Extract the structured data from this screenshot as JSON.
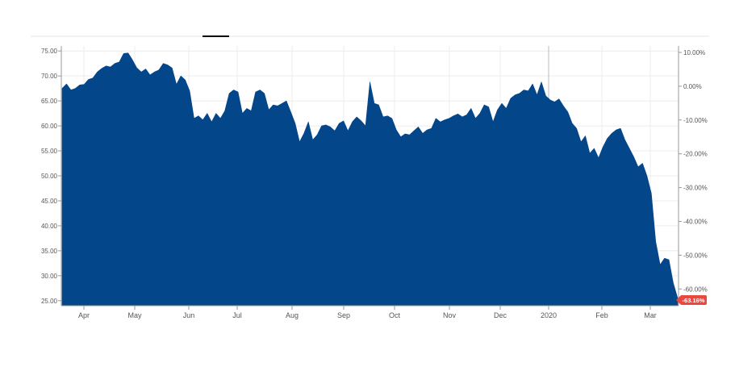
{
  "chart_data": {
    "type": "area",
    "title": "",
    "xlabel": "",
    "ylabel": "",
    "x_labels": [
      "Apr",
      "May",
      "Jun",
      "Jul",
      "Aug",
      "Sep",
      "Oct",
      "Nov",
      "Dec",
      "2020",
      "Feb",
      "Mar"
    ],
    "ylim": [
      24,
      76
    ],
    "left_ticks": [
      "75.00",
      "70.00",
      "65.00",
      "60.00",
      "55.00",
      "50.00",
      "45.00",
      "40.00",
      "35.00",
      "30.00",
      "25.00"
    ],
    "right_ticks": [
      "10.00%",
      "0.00%",
      "-10.00%",
      "-20.00%",
      "-30.00%",
      "-40.00%",
      "-50.00%",
      "-60.00%"
    ],
    "last_change_label": "-63.16%",
    "grid": true,
    "colors": {
      "fill": "#04468a",
      "badge": "#e8483f",
      "grid": "#ececec",
      "axis": "#999999",
      "text": "#555555"
    },
    "series": [
      {
        "values": [
          67.5,
          68.4,
          67.2,
          67.5,
          68.2,
          68.3,
          69.3,
          69.6,
          70.8,
          71.5,
          72.0,
          71.8,
          72.5,
          72.8,
          74.5,
          74.6,
          73.2,
          71.6,
          70.8,
          71.4,
          70.2,
          70.8,
          71.2,
          72.5,
          72.2,
          71.6,
          68.3,
          70.0,
          69.2,
          67.0,
          61.5,
          62.0,
          61.2,
          62.5,
          60.8,
          62.5,
          61.5,
          63.0,
          66.5,
          67.2,
          66.8,
          62.5,
          63.5,
          63.0,
          66.8,
          67.2,
          66.5,
          63.2,
          64.2,
          64.0,
          64.5,
          65.0,
          62.8,
          60.5,
          56.8,
          58.5,
          60.8,
          57.2,
          58.2,
          60.0,
          60.2,
          59.8,
          59.0,
          60.5,
          61.0,
          59.0,
          60.8,
          61.8,
          61.0,
          60.0,
          68.8,
          64.5,
          64.2,
          61.8,
          62.0,
          61.5,
          59.2,
          57.8,
          58.4,
          58.2,
          59.0,
          59.8,
          58.5,
          59.2,
          59.5,
          61.5,
          60.8,
          61.2,
          61.5,
          62.0,
          62.4,
          61.8,
          62.2,
          63.5,
          61.5,
          62.5,
          64.2,
          63.8,
          60.8,
          63.2,
          64.5,
          63.5,
          65.5,
          66.2,
          66.5,
          67.2,
          67.0,
          68.4,
          66.2,
          68.8,
          66.0,
          65.2,
          64.8,
          65.4,
          64.0,
          62.8,
          60.5,
          59.5,
          56.8,
          58.0,
          54.5,
          55.5,
          53.6,
          55.8,
          57.5,
          58.5,
          59.2,
          59.5,
          57.2,
          55.5,
          53.8,
          51.8,
          52.5,
          50.0,
          46.5,
          36.8,
          32.2,
          33.5,
          33.2,
          28.5,
          25.5
        ]
      }
    ]
  }
}
